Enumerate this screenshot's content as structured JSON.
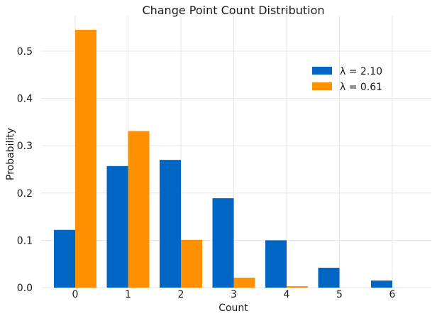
{
  "chart_data": {
    "type": "bar",
    "title": "Change Point Count Distribution",
    "xlabel": "Count",
    "ylabel": "Probability",
    "categories": [
      "0",
      "1",
      "2",
      "3",
      "4",
      "5",
      "6"
    ],
    "ylim": [
      0,
      0.575
    ],
    "yticks": [
      "0.0",
      "0.1",
      "0.2",
      "0.3",
      "0.4",
      "0.5"
    ],
    "grid": true,
    "legend_position": "top-right",
    "series": [
      {
        "name": "λ = 2.10",
        "color": "#0066c4",
        "values": [
          0.122,
          0.257,
          0.27,
          0.189,
          0.1,
          0.042,
          0.015
        ]
      },
      {
        "name": "λ = 0.61",
        "color": "#ff9100",
        "values": [
          0.545,
          0.331,
          0.101,
          0.021,
          0.003,
          0.0,
          0.0
        ]
      }
    ]
  }
}
